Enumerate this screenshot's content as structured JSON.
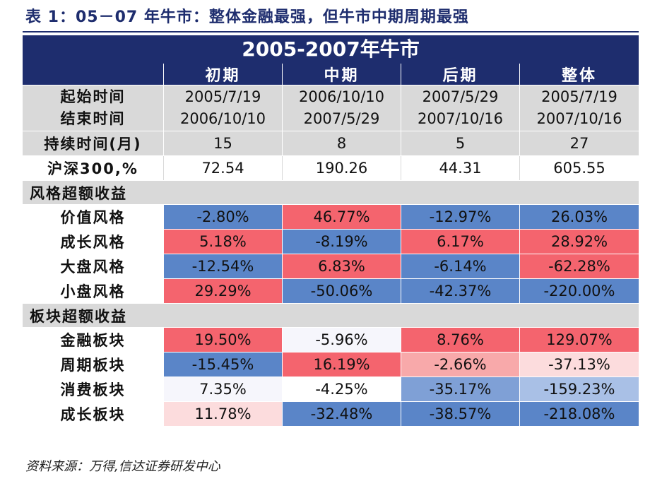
{
  "caption": "表 1：05－07 年牛市：整体金融最强，但牛市中期周期最强",
  "table": {
    "title": "2005-2007年牛市",
    "headers": [
      "",
      "初期",
      "中期",
      "后期",
      "整体"
    ],
    "start_label": "起始时间",
    "end_label": "结束时间",
    "start_dates": [
      "2005/7/19",
      "2006/10/10",
      "2007/5/29",
      "2005/7/19"
    ],
    "end_dates": [
      "2006/10/10",
      "2007/5/29",
      "2007/10/16",
      "2007/10/16"
    ],
    "duration": {
      "label": "持续时间(月)",
      "values": [
        "15",
        "8",
        "5",
        "27"
      ]
    },
    "hs300": {
      "label": "沪深300,%",
      "values": [
        "72.54",
        "190.26",
        "44.31",
        "605.55"
      ]
    },
    "style_section": "风格超额收益",
    "style_rows": [
      {
        "label": "价值风格",
        "values": [
          "-2.80%",
          "46.77%",
          "-12.97%",
          "26.03%"
        ]
      },
      {
        "label": "成长风格",
        "values": [
          "5.18%",
          "-8.19%",
          "6.17%",
          "28.92%"
        ]
      },
      {
        "label": "大盘风格",
        "values": [
          "-12.54%",
          "6.83%",
          "-6.14%",
          "-62.28%"
        ]
      },
      {
        "label": "小盘风格",
        "values": [
          "29.29%",
          "-50.06%",
          "-42.37%",
          "-220.00%"
        ]
      }
    ],
    "sector_section": "板块超额收益",
    "sector_rows": [
      {
        "label": "金融板块",
        "values": [
          "19.50%",
          "-5.96%",
          "8.76%",
          "129.07%"
        ]
      },
      {
        "label": "周期板块",
        "values": [
          "-15.45%",
          "16.19%",
          "-2.66%",
          "-37.13%"
        ]
      },
      {
        "label": "消费板块",
        "values": [
          "7.35%",
          "-4.25%",
          "-35.17%",
          "-159.23%"
        ]
      },
      {
        "label": "成长板块",
        "values": [
          "11.78%",
          "-32.48%",
          "-38.57%",
          "-218.08%"
        ]
      }
    ]
  },
  "colors": {
    "navy": "#1e2d6e",
    "red": "#f4646e",
    "blue": "#5a85c8",
    "red_light": "#f8a9aa",
    "red_pale": "#fcdcdd",
    "blue_light": "#7fa0d6",
    "blue_pale": "#a9c0e6",
    "near_white": "#f6f6fc",
    "gray": "#d9d9d9"
  },
  "source": "资料来源：万得,信达证券研发中心"
}
